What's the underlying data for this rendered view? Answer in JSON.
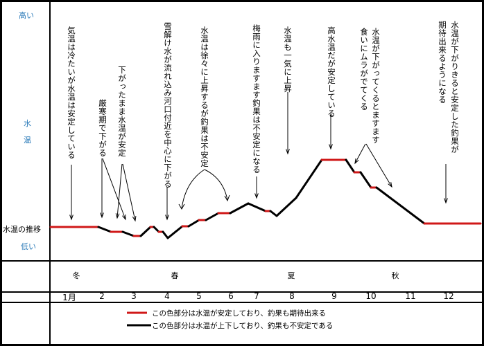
{
  "axis": {
    "high": "高い",
    "label_top": "水",
    "label_bottom": "温",
    "series_label": "水温の推移",
    "low": "低い"
  },
  "annotations": [
    "気温は冷たいが水温は安定している",
    "厳寒期で下がる",
    "下がったまま水温が安定",
    "雪解け水が流れ込み河口付近を中心に下がる",
    "水温は徐々に上昇するが釣果は不安定",
    "梅雨に入りますます釣果は不安定になる",
    "水温も一気に上昇",
    "高水温だが安定している",
    "水温が下がってくるとますます",
    "食いにムラがでてくる",
    "水温が下がりきると安定した釣果が",
    "期待出来るようになる"
  ],
  "seasons": [
    "冬",
    "春",
    "夏",
    "秋"
  ],
  "months": [
    "1月",
    "2",
    "3",
    "4",
    "5",
    "6",
    "7",
    "8",
    "9",
    "10",
    "11",
    "12"
  ],
  "legend": {
    "stable": {
      "text": "この色部分は水温が安定しており、釣果も期待出来る",
      "color": "#d01818"
    },
    "unstable": {
      "text": "この色部分は水温が上下しており、釣果も不安定である",
      "color": "#000000"
    }
  }
}
